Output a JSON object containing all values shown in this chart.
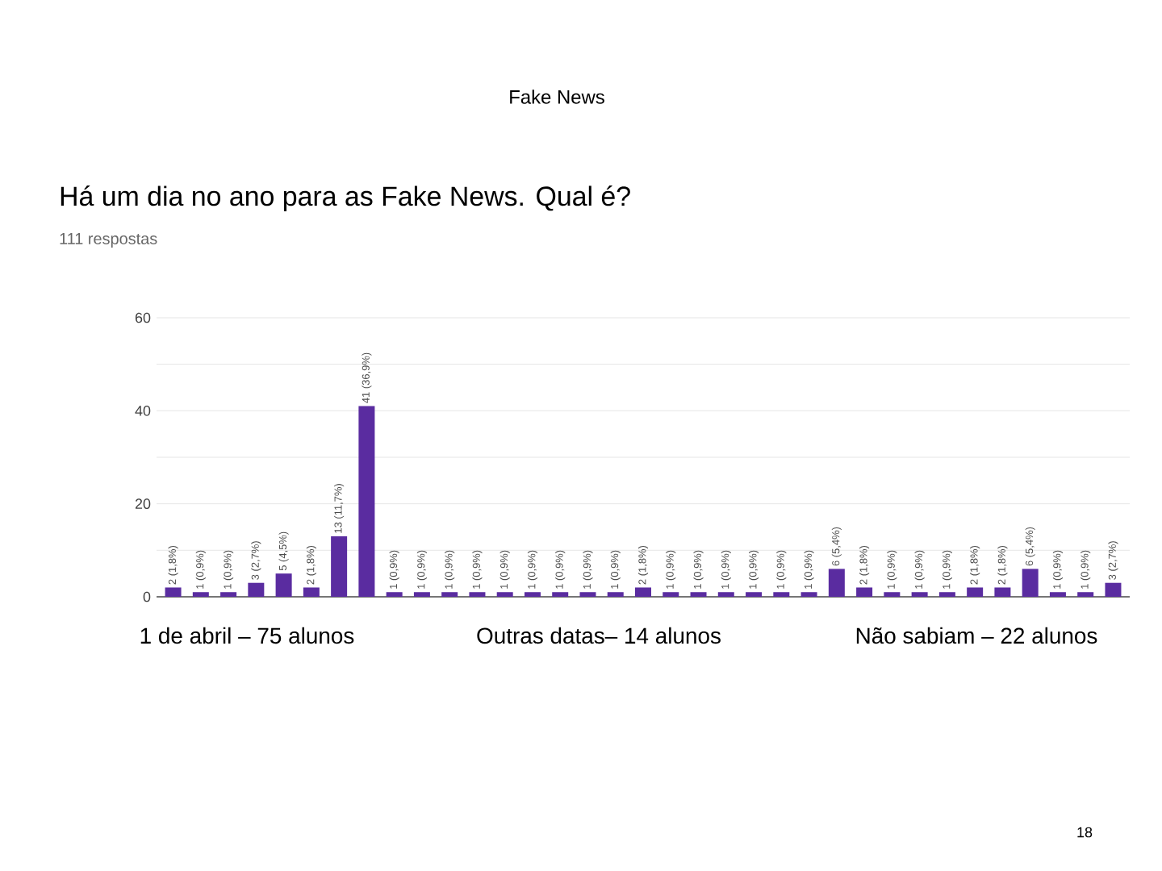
{
  "chart_data": {
    "type": "bar",
    "title": "Há um dia no ano para as Fake News. Qual é?",
    "subtitle": "111 respostas",
    "annotations": [
      "Fake News",
      "1 de abril – 75 alunos",
      "Outras datas– 14 alunos",
      "Não sabiam – 22 alunos",
      "18"
    ],
    "categories": [
      null,
      null,
      null,
      null,
      null,
      null,
      null,
      null,
      null,
      null,
      null,
      null,
      null,
      null,
      null,
      null,
      null,
      null,
      null,
      null,
      null,
      null,
      null,
      null,
      null,
      null,
      null,
      null,
      null,
      null,
      null,
      null,
      null,
      null,
      null
    ],
    "values": [
      2,
      1,
      1,
      3,
      5,
      2,
      13,
      41,
      1,
      1,
      1,
      1,
      1,
      1,
      1,
      1,
      1,
      2,
      1,
      1,
      1,
      1,
      1,
      1,
      6,
      2,
      1,
      1,
      1,
      2,
      2,
      6,
      1,
      1,
      3
    ],
    "value_labels": [
      "2 (1,8%)",
      "1 (0,9%)",
      "1 (0,9%)",
      "3 (2,7%)",
      "5 (4,5%)",
      "2 (1,8%)",
      "13 (11,7%)",
      "41 (36,9%)",
      "1 (0,9%)",
      "1 (0,9%)",
      "1 (0,9%)",
      "1 (0,9%)",
      "1 (0,9%)",
      "1 (0,9%)",
      "1 (0,9%)",
      "1 (0,9%)",
      "1 (0,9%)",
      "2 (1,8%)",
      "1 (0,9%)",
      "1 (0,9%)",
      "1 (0,9%)",
      "1 (0,9%)",
      "1 (0,9%)",
      "1 (0,9%)",
      "6 (5,4%)",
      "2 (1,8%)",
      "1 (0,9%)",
      "1 (0,9%)",
      "1 (0,9%)",
      "2 (1,8%)",
      "2 (1,8%)",
      "6 (5,4%)",
      "1 (0,9%)",
      "1 (0,9%)",
      "3 (2,7%)"
    ],
    "color": "#5a2ca0",
    "ylim": [
      0,
      60
    ],
    "yticks": [
      0,
      {
        "value": 10,
        "label": null
      },
      20,
      {
        "value": 30,
        "label": null
      },
      40,
      {
        "value": 50,
        "label": null
      },
      60
    ],
    "grid": "y"
  }
}
